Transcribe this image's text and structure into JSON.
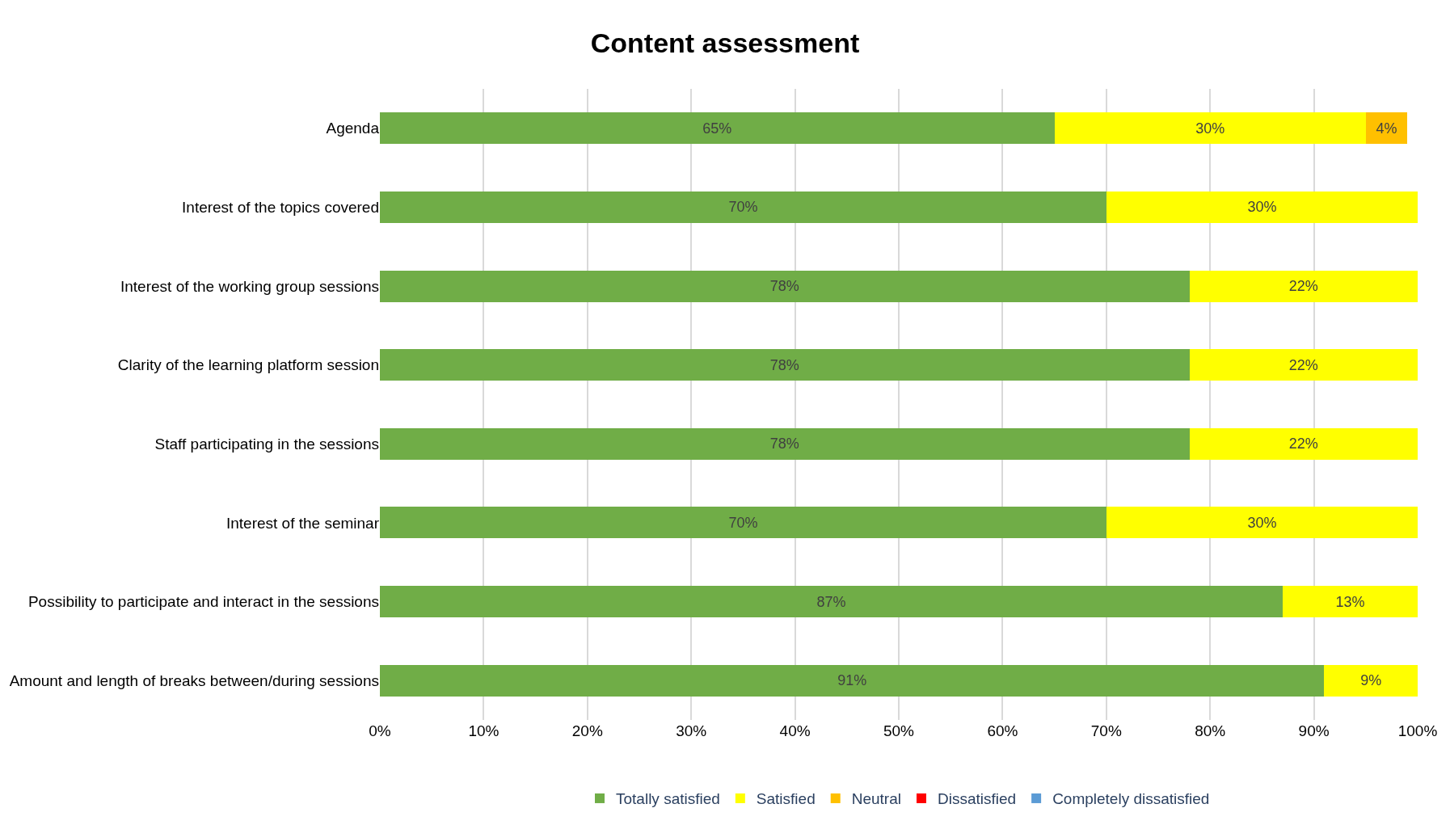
{
  "chart_data": {
    "type": "bar",
    "title": "Content assessment",
    "orientation": "horizontal",
    "stacked": true,
    "categories": [
      "Agenda",
      "Interest of the topics covered",
      "Interest of the working group sessions",
      "Clarity of the learning platform session",
      "Staff participating in the sessions",
      "Interest of the seminar",
      "Possibility to participate and interact in the sessions",
      "Amount and length of breaks between/during sessions"
    ],
    "series": [
      {
        "name": "Totally satisfied",
        "color": "#70ad47",
        "values": [
          65,
          70,
          78,
          78,
          78,
          70,
          87,
          91
        ],
        "value_labels": [
          "65%",
          "70%",
          "78%",
          "78%",
          "78%",
          "70%",
          "87%",
          "91%"
        ]
      },
      {
        "name": "Satisfied",
        "color": "#ffff00",
        "values": [
          30,
          30,
          22,
          22,
          22,
          30,
          13,
          9
        ],
        "value_labels": [
          "30%",
          "30%",
          "22%",
          "22%",
          "22%",
          "30%",
          "13%",
          "9%"
        ]
      },
      {
        "name": "Neutral",
        "color": "#ffc000",
        "values": [
          4,
          null,
          null,
          null,
          null,
          null,
          null,
          null
        ],
        "value_labels": [
          "4%",
          null,
          null,
          null,
          null,
          null,
          null,
          null
        ]
      },
      {
        "name": "Dissatisfied",
        "color": "#ff0000",
        "values": [
          null,
          null,
          null,
          null,
          null,
          null,
          null,
          null
        ]
      },
      {
        "name": "Completely dissatisfied",
        "color": "#5b9bd5",
        "values": [
          null,
          null,
          null,
          null,
          null,
          null,
          null,
          null
        ]
      }
    ],
    "xlim": [
      0,
      100
    ],
    "xticks": [
      {
        "value": 0,
        "label": "0%"
      },
      {
        "value": 10,
        "label": "10%"
      },
      {
        "value": 20,
        "label": "20%"
      },
      {
        "value": 30,
        "label": "30%"
      },
      {
        "value": 40,
        "label": "40%"
      },
      {
        "value": 50,
        "label": "50%"
      },
      {
        "value": 60,
        "label": "60%"
      },
      {
        "value": 70,
        "label": "70%"
      },
      {
        "value": 80,
        "label": "80%"
      },
      {
        "value": 90,
        "label": "90%"
      },
      {
        "value": 100,
        "label": "100%"
      }
    ],
    "grid": "x",
    "legend": "bottom"
  }
}
